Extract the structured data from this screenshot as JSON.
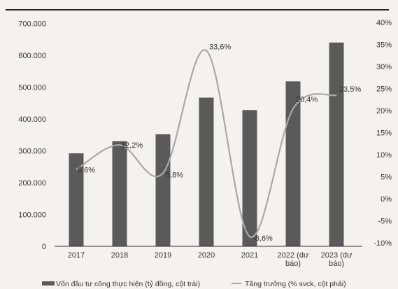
{
  "chart_data": {
    "type": "bar",
    "categories": [
      "2017",
      "2018",
      "2019",
      "2020",
      "2021",
      "2022 (dự báo)",
      "2023 (dự báo)"
    ],
    "category_lines": [
      [
        "2017"
      ],
      [
        "2018"
      ],
      [
        "2019"
      ],
      [
        "2020"
      ],
      [
        "2021"
      ],
      [
        "2022 (dư",
        "báo)"
      ],
      [
        "2023 (dư",
        "báo)"
      ]
    ],
    "series": [
      {
        "name": "Vốn đầu tư công thực hiện (tỷ đồng, cột trái)",
        "type": "bar",
        "axis": "left",
        "values": [
          292000,
          330000,
          352000,
          467000,
          428000,
          518000,
          640000
        ],
        "color": "#5a5a5a"
      },
      {
        "name": "Tăng trưởng (% svck, cột phải)",
        "type": "line",
        "smooth": true,
        "axis": "right",
        "values": [
          6.6,
          12.2,
          5.8,
          33.6,
          -8.6,
          20.4,
          23.5
        ],
        "labels": [
          "6,6%",
          "12,2%",
          "5,8%",
          "33,6%",
          "-8,6%",
          "20,4%",
          "23,5%"
        ],
        "color": "#a8a8a8"
      }
    ],
    "y_left": {
      "range": [
        0,
        700000
      ],
      "ticks": [
        0,
        100000,
        200000,
        300000,
        400000,
        500000,
        600000,
        700000
      ],
      "tick_labels": [
        "0",
        "100.000",
        "200.000",
        "300.000",
        "400.000",
        "500.000",
        "600.000",
        "700.000"
      ]
    },
    "y_right": {
      "range": [
        -10,
        40
      ],
      "ticks": [
        -10,
        -5,
        0,
        5,
        10,
        15,
        20,
        25,
        30,
        35,
        40
      ],
      "tick_labels": [
        "-10%",
        "-5%",
        "0%",
        "5%",
        "10%",
        "15%",
        "20%",
        "25%",
        "30%",
        "35%",
        "40%"
      ]
    },
    "grid": false,
    "legend_position": "bottom"
  },
  "colors": {
    "background": "#f3f2ee",
    "bar": "#5a5a5a",
    "line": "#a8a8a8",
    "axis": "#333333",
    "top_rule": "#222222"
  }
}
